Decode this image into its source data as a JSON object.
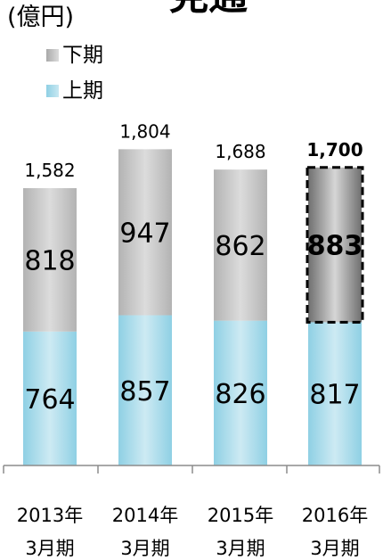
{
  "unit_label": "(億円)",
  "title_partial": "見通",
  "legend": [
    {
      "key": "lower",
      "label": "下期",
      "color": "#bdbdbd"
    },
    {
      "key": "upper",
      "label": "上期",
      "color": "#9cd6e8"
    }
  ],
  "chart_data": {
    "type": "bar",
    "stacked": true,
    "categories": [
      {
        "line1": "2013年",
        "line2": "3月期"
      },
      {
        "line1": "2014年",
        "line2": "3月期"
      },
      {
        "line1": "2015年",
        "line2": "3月期"
      },
      {
        "line1": "2016年",
        "line2": "3月期"
      }
    ],
    "series": [
      {
        "name": "上期",
        "values": [
          764,
          857,
          826,
          817
        ],
        "color": "#9cd6e8"
      },
      {
        "name": "下期",
        "values": [
          818,
          947,
          862,
          883
        ],
        "color": "#bdbdbd"
      }
    ],
    "totals": [
      "1,582",
      "1,804",
      "1,688",
      "1,700"
    ],
    "highlight_index": 3,
    "highlight_color": "#7f7f7f",
    "ylim": [
      0,
      1850
    ],
    "grid": false,
    "legend_position": "top-left"
  }
}
